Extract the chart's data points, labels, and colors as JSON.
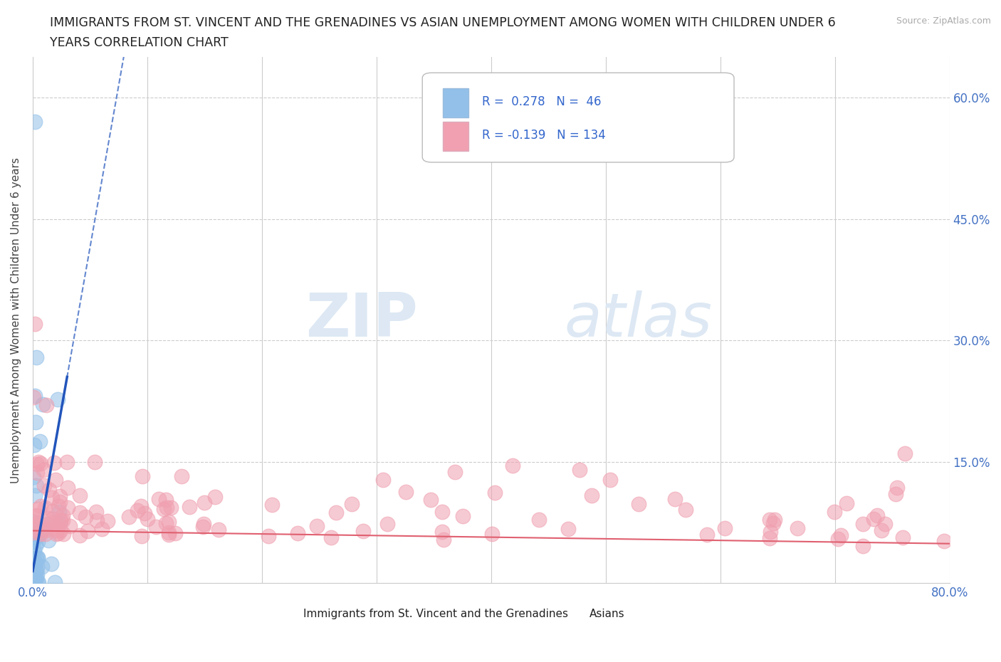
{
  "title_line1": "IMMIGRANTS FROM ST. VINCENT AND THE GRENADINES VS ASIAN UNEMPLOYMENT AMONG WOMEN WITH CHILDREN UNDER 6",
  "title_line2": "YEARS CORRELATION CHART",
  "source": "Source: ZipAtlas.com",
  "ylabel": "Unemployment Among Women with Children Under 6 years",
  "xlim": [
    0.0,
    0.8
  ],
  "ylim": [
    0.0,
    0.65
  ],
  "blue_color": "#92c0e8",
  "pink_color": "#f0a0b0",
  "trend_blue": "#2255bb",
  "trend_pink": "#e06070",
  "watermark_zip": "ZIP",
  "watermark_atlas": "atlas",
  "r1": "0.278",
  "n1": "46",
  "r2": "-0.139",
  "n2": "134"
}
